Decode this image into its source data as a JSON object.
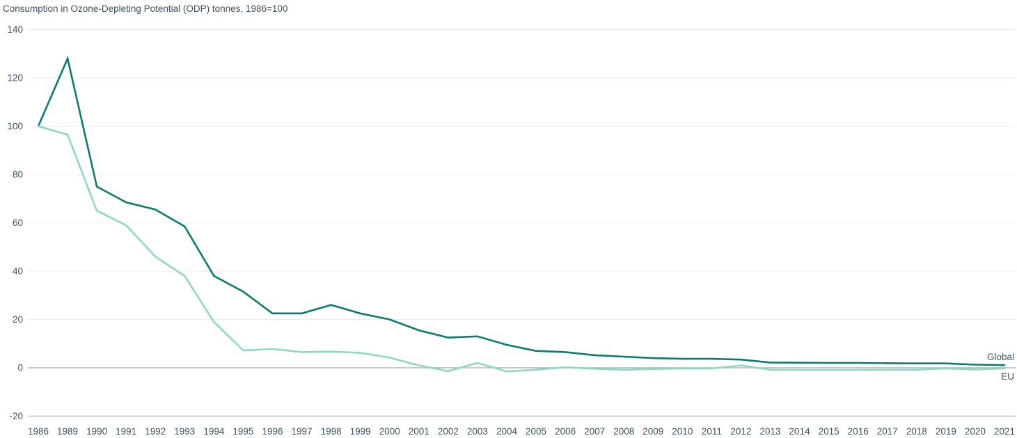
{
  "chart_data": {
    "type": "line",
    "title": "Consumption in Ozone-Depleting Potential (ODP) tonnes, 1986=100",
    "categories": [
      "1986",
      "1989",
      "1990",
      "1991",
      "1992",
      "1993",
      "1994",
      "1995",
      "1996",
      "1997",
      "1998",
      "1999",
      "2000",
      "2001",
      "2002",
      "2003",
      "2004",
      "2005",
      "2006",
      "2007",
      "2008",
      "2009",
      "2010",
      "2011",
      "2012",
      "2013",
      "2014",
      "2015",
      "2016",
      "2017",
      "2018",
      "2019",
      "2020",
      "2021"
    ],
    "series": [
      {
        "name": "Global",
        "color": "#0d7a6e",
        "values": [
          100,
          128,
          75,
          68.5,
          65.5,
          58.5,
          38,
          31.5,
          22.5,
          22.5,
          26,
          22.5,
          20,
          15.5,
          12.5,
          13,
          9.5,
          7,
          6.5,
          5.2,
          4.6,
          4,
          3.7,
          3.7,
          3.4,
          2.2,
          2.1,
          2,
          2,
          1.9,
          1.8,
          1.8,
          1.3,
          1.1
        ]
      },
      {
        "name": "EU",
        "color": "#8fd7c5",
        "values": [
          100,
          96.5,
          65,
          59,
          46,
          38,
          19,
          7.2,
          7.8,
          6.5,
          6.7,
          6.2,
          4.2,
          1,
          -1.4,
          2,
          -1.5,
          -0.8,
          0.2,
          -0.4,
          -0.8,
          -0.5,
          -0.3,
          -0.3,
          1,
          -0.8,
          -0.9,
          -0.9,
          -0.9,
          -0.8,
          -0.8,
          -0.3,
          -0.7,
          -0.3
        ]
      }
    ],
    "y_ticks": [
      140,
      120,
      100,
      80,
      60,
      40,
      20,
      0,
      -20
    ],
    "ylim": [
      -20,
      140
    ],
    "grid": "horizontal",
    "legend_position": "right-end-of-lines",
    "colors": {
      "text": "#3d5160",
      "gridline": "#ececec",
      "zero_line": "#b3b3b3",
      "bottom_line": "#bcbcbc",
      "background": "#ffffff"
    }
  }
}
